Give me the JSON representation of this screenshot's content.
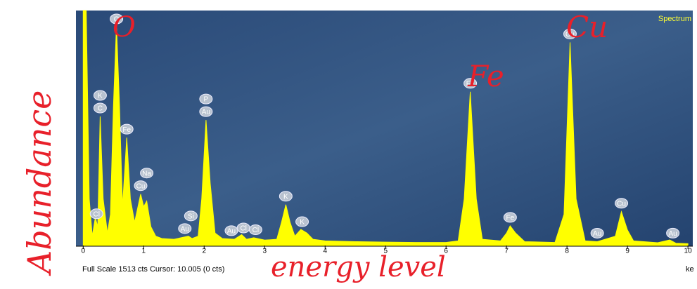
{
  "chart_data": {
    "type": "area",
    "title": "Spectrum",
    "footer": "Full Scale 1513 cts Cursor: 10.005 (0 cts)",
    "x_label": "ke",
    "color": "#ffff00",
    "x": [
      0,
      0.05,
      0.1,
      0.15,
      0.2,
      0.24,
      0.28,
      0.33,
      0.4,
      0.45,
      0.5,
      0.55,
      0.6,
      0.65,
      0.72,
      0.78,
      0.85,
      0.95,
      1.0,
      1.05,
      1.12,
      1.2,
      1.3,
      1.5,
      1.74,
      1.8,
      1.9,
      1.96,
      2.03,
      2.1,
      2.18,
      2.3,
      2.5,
      2.62,
      2.7,
      2.82,
      3.0,
      3.2,
      3.28,
      3.35,
      3.42,
      3.5,
      3.6,
      3.7,
      3.8,
      4.0,
      4.5,
      5.0,
      5.5,
      6.0,
      6.2,
      6.3,
      6.4,
      6.5,
      6.6,
      6.9,
      7.0,
      7.06,
      7.15,
      7.3,
      7.8,
      7.95,
      8.05,
      8.15,
      8.3,
      8.5,
      8.8,
      8.9,
      9.0,
      9.1,
      9.5,
      9.7,
      9.8,
      10.0
    ],
    "values": [
      1513,
      1513,
      300,
      60,
      180,
      120,
      831,
      300,
      80,
      200,
      900,
      1421,
      900,
      250,
      695,
      300,
      150,
      331,
      250,
      286,
      120,
      60,
      45,
      40,
      60,
      45,
      60,
      300,
      808,
      400,
      80,
      45,
      40,
      70,
      40,
      50,
      35,
      40,
      150,
      263,
      150,
      60,
      104,
      80,
      40,
      30,
      25,
      22,
      20,
      20,
      30,
      300,
      990,
      300,
      40,
      30,
      80,
      127,
      80,
      25,
      20,
      200,
      1308,
      300,
      30,
      25,
      60,
      218,
      100,
      30,
      18,
      36,
      15,
      12
    ],
    "xlim": [
      -0.12,
      10.08
    ],
    "ylim": [
      0,
      1513
    ],
    "xticks": [
      0,
      1,
      2,
      3,
      4,
      5,
      6,
      7,
      8,
      9,
      10
    ],
    "peak_labels": [
      {
        "label": "Cl",
        "x": 0.22
      },
      {
        "label": "C",
        "x": 0.28
      },
      {
        "label": "K",
        "x": 0.28
      },
      {
        "label": "O",
        "x": 0.55
      },
      {
        "label": "Fe",
        "x": 0.72
      },
      {
        "label": "Cu",
        "x": 0.95
      },
      {
        "label": "Na",
        "x": 1.05
      },
      {
        "label": "Au",
        "x": 1.68
      },
      {
        "label": "Si",
        "x": 1.78
      },
      {
        "label": "Au",
        "x": 2.03
      },
      {
        "label": "P",
        "x": 2.03
      },
      {
        "label": "Au",
        "x": 2.45
      },
      {
        "label": "Cl",
        "x": 2.65
      },
      {
        "label": "Cl",
        "x": 2.85
      },
      {
        "label": "K",
        "x": 3.35
      },
      {
        "label": "K",
        "x": 3.62
      },
      {
        "label": "Fe",
        "x": 6.4
      },
      {
        "label": "Fe",
        "x": 7.06
      },
      {
        "label": "Cu",
        "x": 8.05
      },
      {
        "label": "Au",
        "x": 8.5
      },
      {
        "label": "Cu",
        "x": 8.9
      },
      {
        "label": "Au",
        "x": 9.75
      }
    ],
    "handwritten_annotations": [
      "Abundance",
      "O",
      "Fe",
      "Cu",
      "energy level"
    ]
  }
}
